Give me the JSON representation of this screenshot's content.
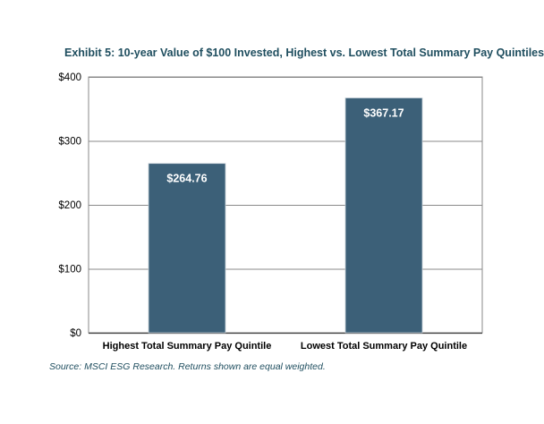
{
  "title": "Exhibit 5: 10-year Value of $100 Invested, Highest vs. Lowest Total Summary Pay Quintiles",
  "source": "Source: MSCI ESG Research. Returns shown are equal weighted.",
  "colors": {
    "bar": "#3c6078",
    "grid": "#8a8a8a",
    "text": "#000000",
    "title": "#1f4e5f",
    "label": "#ffffff"
  },
  "chart_data": {
    "type": "bar",
    "title": "Exhibit 5: 10-year Value of $100 Invested, Highest vs. Lowest Total Summary Pay Quintiles",
    "xlabel": "",
    "ylabel": "",
    "categories": [
      "Highest Total Summary Pay Quintile",
      "Lowest Total Summary Pay Quintile"
    ],
    "values": [
      264.76,
      367.17
    ],
    "data_labels": [
      "$264.76",
      "$367.17"
    ],
    "ylim": [
      0,
      400
    ],
    "yticks": [
      0,
      100,
      200,
      300,
      400
    ],
    "ytick_labels": [
      "$0",
      "$100",
      "$200",
      "$300",
      "$400"
    ],
    "grid": true,
    "legend": "none"
  }
}
